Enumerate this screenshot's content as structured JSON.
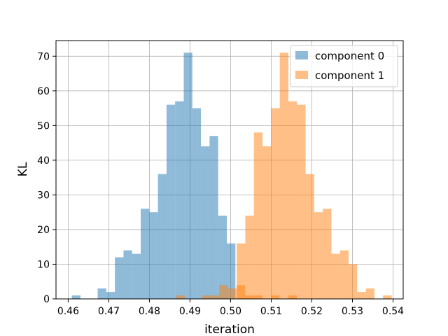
{
  "chart_data": {
    "type": "bar",
    "subtype": "histogram",
    "title": "",
    "xlabel": "iteration",
    "ylabel": "KL",
    "xlim": [
      0.457,
      0.5425
    ],
    "ylim": [
      0,
      74.5
    ],
    "xticks": [
      0.46,
      0.47,
      0.48,
      0.49,
      0.5,
      0.51,
      0.52,
      0.53,
      0.54
    ],
    "xtick_labels": [
      "0.46",
      "0.47",
      "0.48",
      "0.49",
      "0.50",
      "0.51",
      "0.52",
      "0.53",
      "0.54"
    ],
    "yticks": [
      0,
      10,
      20,
      30,
      40,
      50,
      60,
      70
    ],
    "ytick_labels": [
      "0",
      "10",
      "20",
      "30",
      "40",
      "50",
      "60",
      "70"
    ],
    "grid": true,
    "legend": "top-right",
    "series": [
      {
        "name": "component 0",
        "color": "#1f77b4",
        "opacity": 0.5,
        "bin_start": 0.4609,
        "bin_width": 0.00212,
        "counts": [
          1,
          0,
          0,
          3,
          2,
          12,
          14,
          13,
          26,
          25,
          36,
          56,
          57,
          71,
          55,
          44,
          47,
          24,
          16
        ]
      },
      {
        "name": "component 1",
        "color": "#ff7f0e",
        "opacity": 0.5,
        "bin_start": 0.4866,
        "bin_width": 0.00212,
        "counts": [
          1,
          0,
          0,
          1,
          1,
          4,
          3,
          4,
          1,
          1,
          0,
          1,
          0,
          1,
          0,
          0,
          0,
          0,
          0
        ]
      },
      {
        "name": "component 1",
        "color": "#ff7f0e",
        "opacity": 0.5,
        "bin_start": 0.5015,
        "bin_width": 0.00212,
        "counts": [
          16,
          24,
          48,
          44,
          55,
          71,
          57,
          56,
          36,
          25,
          26,
          13,
          14,
          10,
          2,
          3,
          0,
          1
        ]
      }
    ]
  }
}
